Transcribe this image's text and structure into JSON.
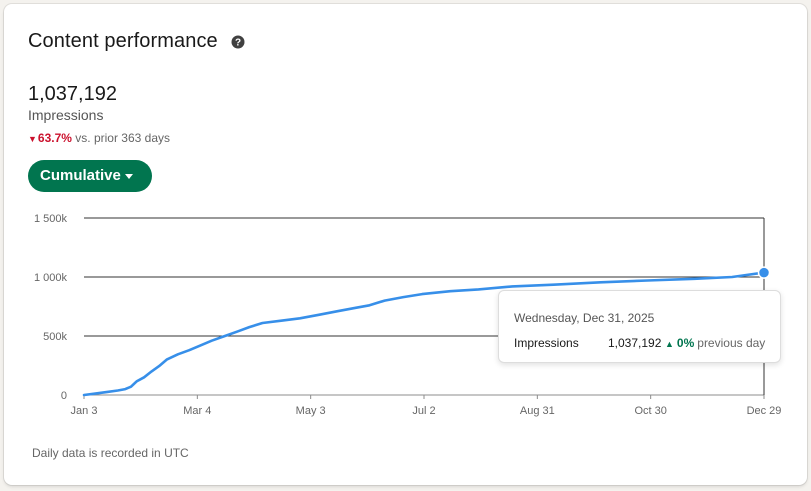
{
  "card": {
    "title": "Content performance",
    "help_icon": "question-circle-icon"
  },
  "metric": {
    "value": "1,037,192",
    "label": "Impressions",
    "change_pct": "63.7%",
    "change_direction": "down",
    "change_text": "vs. prior 363 days"
  },
  "view_toggle": {
    "label": "Cumulative"
  },
  "tooltip": {
    "date": "Wednesday, Dec 31, 2025",
    "series": "Impressions",
    "value": "1,037,192",
    "change_pct": "0%",
    "change_direction": "up",
    "change_text": "previous day"
  },
  "footnote": "Daily data is recorded in UTC",
  "colors": {
    "accent": "#01754f",
    "line": "#378fe9",
    "down": "#cb112d",
    "up": "#01754f"
  },
  "chart_data": {
    "type": "line",
    "ylim": [
      0,
      1500000
    ],
    "y_ticks": [
      {
        "value": 0,
        "label": "0"
      },
      {
        "value": 500000,
        "label": "500k"
      },
      {
        "value": 1000000,
        "label": "1 000k"
      },
      {
        "value": 1500000,
        "label": "1 500k"
      }
    ],
    "x_ticks": [
      "Jan 3",
      "Mar 4",
      "May 3",
      "Jul 2",
      "Aug 31",
      "Oct 30",
      "Dec 29"
    ],
    "series": [
      {
        "values": [
          [
            0,
            0
          ],
          [
            6,
            12000
          ],
          [
            12,
            25000
          ],
          [
            18,
            38000
          ],
          [
            22,
            50000
          ],
          [
            25,
            70000
          ],
          [
            28,
            115000
          ],
          [
            32,
            150000
          ],
          [
            36,
            200000
          ],
          [
            40,
            245000
          ],
          [
            44,
            300000
          ],
          [
            50,
            345000
          ],
          [
            56,
            380000
          ],
          [
            62,
            420000
          ],
          [
            68,
            460000
          ],
          [
            75,
            500000
          ],
          [
            82,
            540000
          ],
          [
            88,
            575000
          ],
          [
            95,
            610000
          ],
          [
            105,
            630000
          ],
          [
            115,
            650000
          ],
          [
            125,
            680000
          ],
          [
            135,
            710000
          ],
          [
            145,
            740000
          ],
          [
            152,
            760000
          ],
          [
            160,
            800000
          ],
          [
            170,
            830000
          ],
          [
            180,
            855000
          ],
          [
            195,
            880000
          ],
          [
            210,
            895000
          ],
          [
            228,
            920000
          ],
          [
            250,
            935000
          ],
          [
            275,
            955000
          ],
          [
            300,
            970000
          ],
          [
            325,
            985000
          ],
          [
            345,
            1000000
          ],
          [
            362,
            1037192
          ]
        ]
      }
    ],
    "highlight_point": [
      362,
      1037192
    ]
  }
}
